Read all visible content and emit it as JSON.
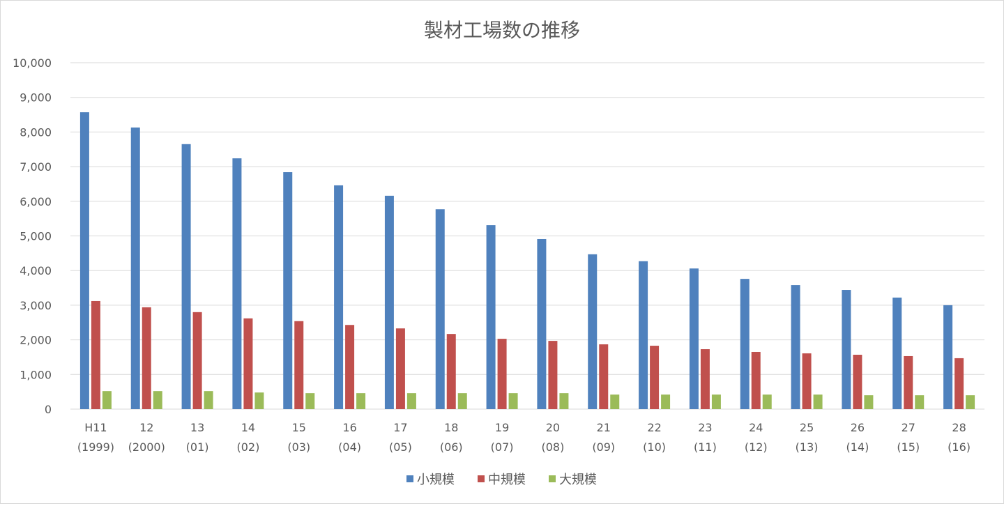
{
  "chart_data": {
    "type": "bar",
    "title": "製材工場数の推移",
    "xlabel": "",
    "ylabel": "",
    "ylim": [
      0,
      10000
    ],
    "yticks": [
      "0",
      "1,000",
      "2,000",
      "3,000",
      "4,000",
      "5,000",
      "6,000",
      "7,000",
      "8,000",
      "9,000",
      "10,000"
    ],
    "grid": true,
    "legend_position": "bottom",
    "categories": [
      [
        "H11",
        "(1999)"
      ],
      [
        "12",
        "(2000)"
      ],
      [
        "13",
        "(01)"
      ],
      [
        "14",
        "(02)"
      ],
      [
        "15",
        "(03)"
      ],
      [
        "16",
        "(04)"
      ],
      [
        "17",
        "(05)"
      ],
      [
        "18",
        "(06)"
      ],
      [
        "19",
        "(07)"
      ],
      [
        "20",
        "(08)"
      ],
      [
        "21",
        "(09)"
      ],
      [
        "22",
        "(10)"
      ],
      [
        "23",
        "(11)"
      ],
      [
        "24",
        "(12)"
      ],
      [
        "25",
        "(13)"
      ],
      [
        "26",
        "(14)"
      ],
      [
        "27",
        "(15)"
      ],
      [
        "28",
        "(16)"
      ]
    ],
    "series": [
      {
        "name": "小規模",
        "color": "#4f81bd",
        "values": [
          8570,
          8130,
          7650,
          7240,
          6840,
          6460,
          6160,
          5770,
          5310,
          4910,
          4470,
          4270,
          4060,
          3760,
          3580,
          3440,
          3220,
          3000
        ]
      },
      {
        "name": "中規模",
        "color": "#c0504d",
        "values": [
          3120,
          2940,
          2800,
          2620,
          2540,
          2430,
          2330,
          2170,
          2030,
          1970,
          1870,
          1830,
          1730,
          1650,
          1610,
          1570,
          1530,
          1470
        ]
      },
      {
        "name": "大規模",
        "color": "#9bbb59",
        "values": [
          520,
          520,
          520,
          480,
          460,
          460,
          460,
          460,
          460,
          460,
          420,
          420,
          420,
          420,
          420,
          400,
          400,
          400
        ]
      }
    ]
  }
}
